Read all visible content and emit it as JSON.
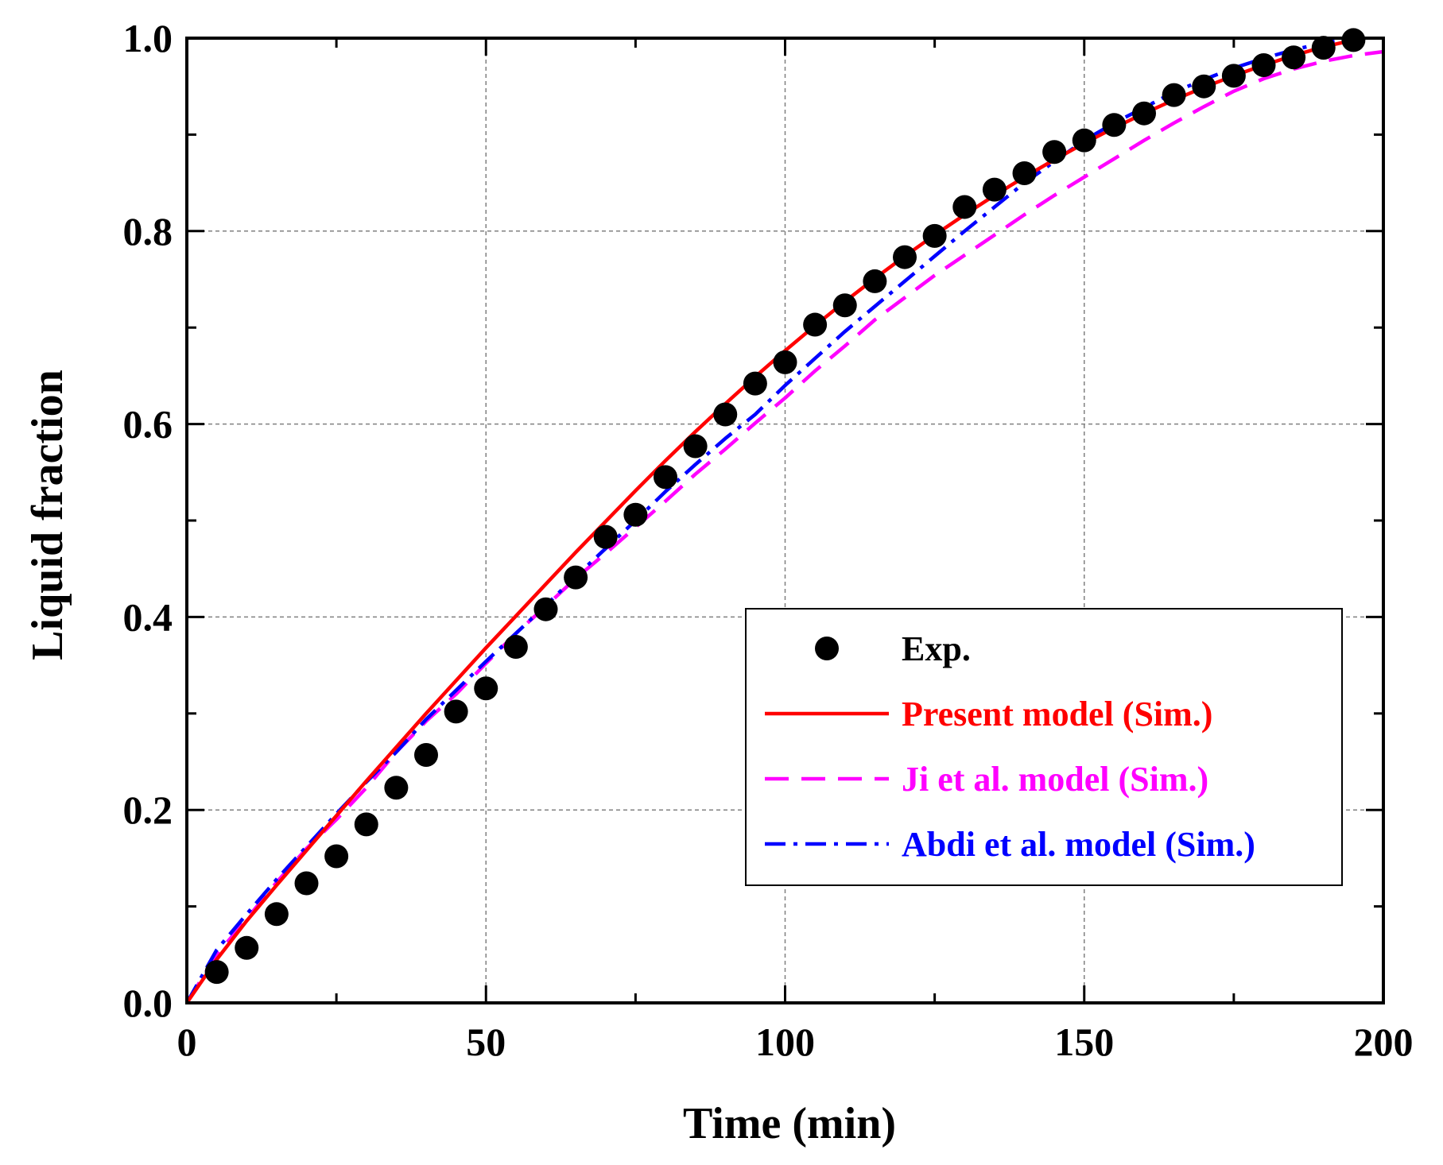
{
  "chart_data": {
    "type": "line",
    "title": "",
    "xlabel": "Time (min)",
    "ylabel": "Liquid fraction",
    "xlim": [
      0,
      200
    ],
    "ylim": [
      0.0,
      1.0
    ],
    "x_ticks": [
      0,
      50,
      100,
      150,
      200
    ],
    "x_tick_labels": [
      "0",
      "50",
      "100",
      "150",
      "200"
    ],
    "y_ticks": [
      0.0,
      0.2,
      0.4,
      0.6,
      0.8,
      1.0
    ],
    "y_tick_labels": [
      "0.0",
      "0.2",
      "0.4",
      "0.6",
      "0.8",
      "1.0"
    ],
    "grid": true,
    "legend_position": "center-right",
    "series": [
      {
        "name": "Exp.",
        "style": "scatter",
        "color": "#000000",
        "x": [
          5,
          10,
          15,
          20,
          25,
          30,
          35,
          40,
          45,
          50,
          55,
          60,
          65,
          70,
          75,
          80,
          85,
          90,
          95,
          100,
          105,
          110,
          115,
          120,
          125,
          130,
          135,
          140,
          145,
          150,
          155,
          160,
          165,
          170,
          175,
          180,
          185,
          190,
          195
        ],
        "values": [
          0.032,
          0.057,
          0.092,
          0.124,
          0.152,
          0.185,
          0.223,
          0.257,
          0.302,
          0.326,
          0.369,
          0.408,
          0.441,
          0.483,
          0.506,
          0.545,
          0.577,
          0.61,
          0.642,
          0.664,
          0.703,
          0.723,
          0.748,
          0.773,
          0.795,
          0.825,
          0.843,
          0.86,
          0.882,
          0.894,
          0.91,
          0.922,
          0.941,
          0.95,
          0.961,
          0.972,
          0.98,
          0.99,
          0.998
        ]
      },
      {
        "name": "Present model (Sim.)",
        "style": "solid",
        "color": "#ff0000",
        "x": [
          0,
          5,
          10,
          15,
          20,
          25,
          30,
          35,
          40,
          45,
          50,
          55,
          60,
          65,
          70,
          75,
          80,
          85,
          90,
          95,
          100,
          105,
          110,
          115,
          120,
          125,
          130,
          135,
          140,
          145,
          150,
          155,
          160,
          165,
          170,
          175,
          180,
          185,
          190,
          195
        ],
        "values": [
          0.0,
          0.045,
          0.085,
          0.122,
          0.158,
          0.194,
          0.23,
          0.265,
          0.3,
          0.334,
          0.368,
          0.401,
          0.434,
          0.467,
          0.499,
          0.531,
          0.562,
          0.592,
          0.621,
          0.649,
          0.676,
          0.702,
          0.727,
          0.751,
          0.774,
          0.796,
          0.817,
          0.837,
          0.856,
          0.874,
          0.891,
          0.907,
          0.922,
          0.936,
          0.949,
          0.961,
          0.972,
          0.982,
          0.991,
          0.998
        ]
      },
      {
        "name": "Ji et al. model (Sim.)",
        "style": "dashed",
        "color": "#ff00ff",
        "x": [
          0,
          5,
          10,
          15,
          20,
          25,
          30,
          35,
          40,
          45,
          50,
          55,
          60,
          65,
          70,
          75,
          80,
          85,
          90,
          95,
          100,
          105,
          110,
          115,
          120,
          125,
          130,
          135,
          140,
          145,
          150,
          155,
          160,
          165,
          170,
          175,
          180,
          185,
          190,
          195,
          200
        ],
        "values": [
          0.0,
          0.05,
          0.087,
          0.125,
          0.16,
          0.19,
          0.223,
          0.26,
          0.292,
          0.32,
          0.352,
          0.383,
          0.411,
          0.44,
          0.466,
          0.493,
          0.52,
          0.548,
          0.574,
          0.601,
          0.627,
          0.655,
          0.681,
          0.708,
          0.731,
          0.754,
          0.775,
          0.796,
          0.817,
          0.837,
          0.856,
          0.875,
          0.894,
          0.912,
          0.929,
          0.945,
          0.958,
          0.968,
          0.976,
          0.982,
          0.986
        ]
      },
      {
        "name": "Abdi et al. model (Sim.)",
        "style": "dash-dot",
        "color": "#0000ff",
        "x": [
          0,
          5,
          10,
          15,
          20,
          25,
          30,
          35,
          40,
          45,
          50,
          55,
          60,
          65,
          70,
          75,
          80,
          85,
          90,
          95,
          100,
          105,
          110,
          115,
          120,
          125,
          130,
          135,
          140,
          145,
          150,
          155,
          160,
          165,
          170,
          175,
          180,
          185,
          190,
          195
        ],
        "values": [
          0.0,
          0.055,
          0.092,
          0.128,
          0.162,
          0.196,
          0.229,
          0.26,
          0.294,
          0.324,
          0.354,
          0.383,
          0.412,
          0.442,
          0.471,
          0.5,
          0.53,
          0.558,
          0.585,
          0.61,
          0.64,
          0.668,
          0.696,
          0.722,
          0.748,
          0.774,
          0.8,
          0.825,
          0.85,
          0.872,
          0.894,
          0.912,
          0.928,
          0.944,
          0.957,
          0.969,
          0.979,
          0.988,
          0.995,
          1.0
        ]
      }
    ]
  }
}
